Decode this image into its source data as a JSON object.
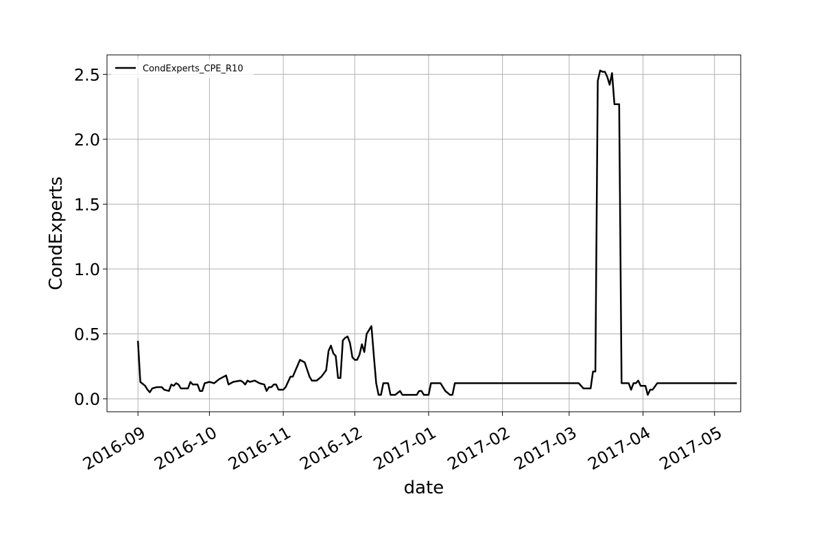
{
  "chart_data": {
    "type": "line",
    "xlabel": "date",
    "ylabel": "CondExperts",
    "x_ticks": [
      "2016-09",
      "2016-10",
      "2016-11",
      "2016-12",
      "2017-01",
      "2017-02",
      "2017-03",
      "2017-04",
      "2017-05"
    ],
    "y_ticks": [
      "0.0",
      "0.5",
      "1.0",
      "1.5",
      "2.0",
      "2.5"
    ],
    "xlim": [
      "2016-08-19",
      "2017-05-12"
    ],
    "ylim": [
      -0.1,
      2.65
    ],
    "grid": true,
    "legend_position": "top-left",
    "series": [
      {
        "name": "CondExperts_CPE_R10",
        "color": "#000000",
        "points": [
          [
            "2016-09-01",
            0.44
          ],
          [
            "2016-09-02",
            0.13
          ],
          [
            "2016-09-04",
            0.1
          ],
          [
            "2016-09-05",
            0.07
          ],
          [
            "2016-09-06",
            0.05
          ],
          [
            "2016-09-07",
            0.08
          ],
          [
            "2016-09-09",
            0.09
          ],
          [
            "2016-09-11",
            0.09
          ],
          [
            "2016-09-12",
            0.07
          ],
          [
            "2016-09-14",
            0.06
          ],
          [
            "2016-09-15",
            0.11
          ],
          [
            "2016-09-16",
            0.1
          ],
          [
            "2016-09-17",
            0.12
          ],
          [
            "2016-09-18",
            0.11
          ],
          [
            "2016-09-19",
            0.08
          ],
          [
            "2016-09-21",
            0.08
          ],
          [
            "2016-09-22",
            0.08
          ],
          [
            "2016-09-23",
            0.13
          ],
          [
            "2016-09-24",
            0.11
          ],
          [
            "2016-09-26",
            0.11
          ],
          [
            "2016-09-27",
            0.06
          ],
          [
            "2016-09-28",
            0.06
          ],
          [
            "2016-09-29",
            0.12
          ],
          [
            "2016-10-01",
            0.13
          ],
          [
            "2016-10-03",
            0.12
          ],
          [
            "2016-10-05",
            0.15
          ],
          [
            "2016-10-08",
            0.18
          ],
          [
            "2016-10-09",
            0.11
          ],
          [
            "2016-10-11",
            0.13
          ],
          [
            "2016-10-14",
            0.14
          ],
          [
            "2016-10-15",
            0.13
          ],
          [
            "2016-10-16",
            0.11
          ],
          [
            "2016-10-17",
            0.14
          ],
          [
            "2016-10-18",
            0.13
          ],
          [
            "2016-10-20",
            0.14
          ],
          [
            "2016-10-22",
            0.12
          ],
          [
            "2016-10-24",
            0.11
          ],
          [
            "2016-10-25",
            0.06
          ],
          [
            "2016-10-26",
            0.09
          ],
          [
            "2016-10-27",
            0.09
          ],
          [
            "2016-10-28",
            0.11
          ],
          [
            "2016-10-29",
            0.11
          ],
          [
            "2016-10-30",
            0.07
          ],
          [
            "2016-11-01",
            0.07
          ],
          [
            "2016-11-02",
            0.09
          ],
          [
            "2016-11-04",
            0.17
          ],
          [
            "2016-11-05",
            0.17
          ],
          [
            "2016-11-08",
            0.3
          ],
          [
            "2016-11-10",
            0.28
          ],
          [
            "2016-11-12",
            0.17
          ],
          [
            "2016-11-13",
            0.14
          ],
          [
            "2016-11-15",
            0.14
          ],
          [
            "2016-11-17",
            0.17
          ],
          [
            "2016-11-19",
            0.22
          ],
          [
            "2016-11-20",
            0.37
          ],
          [
            "2016-11-21",
            0.41
          ],
          [
            "2016-11-22",
            0.35
          ],
          [
            "2016-11-23",
            0.33
          ],
          [
            "2016-11-24",
            0.16
          ],
          [
            "2016-11-25",
            0.16
          ],
          [
            "2016-11-26",
            0.45
          ],
          [
            "2016-11-27",
            0.47
          ],
          [
            "2016-11-28",
            0.48
          ],
          [
            "2016-11-29",
            0.43
          ],
          [
            "2016-11-30",
            0.32
          ],
          [
            "2016-12-01",
            0.3
          ],
          [
            "2016-12-02",
            0.3
          ],
          [
            "2016-12-03",
            0.34
          ],
          [
            "2016-12-04",
            0.42
          ],
          [
            "2016-12-05",
            0.36
          ],
          [
            "2016-12-06",
            0.5
          ],
          [
            "2016-12-07",
            0.53
          ],
          [
            "2016-12-08",
            0.56
          ],
          [
            "2016-12-09",
            0.33
          ],
          [
            "2016-12-10",
            0.12
          ],
          [
            "2016-12-11",
            0.03
          ],
          [
            "2016-12-12",
            0.03
          ],
          [
            "2016-12-13",
            0.12
          ],
          [
            "2016-12-15",
            0.12
          ],
          [
            "2016-12-16",
            0.03
          ],
          [
            "2016-12-18",
            0.03
          ],
          [
            "2016-12-20",
            0.06
          ],
          [
            "2016-12-21",
            0.03
          ],
          [
            "2016-12-25",
            0.03
          ],
          [
            "2016-12-27",
            0.03
          ],
          [
            "2016-12-28",
            0.06
          ],
          [
            "2016-12-29",
            0.06
          ],
          [
            "2016-12-30",
            0.03
          ],
          [
            "2017-01-01",
            0.03
          ],
          [
            "2017-01-02",
            0.12
          ],
          [
            "2017-01-06",
            0.12
          ],
          [
            "2017-01-08",
            0.06
          ],
          [
            "2017-01-10",
            0.03
          ],
          [
            "2017-01-11",
            0.03
          ],
          [
            "2017-01-12",
            0.12
          ],
          [
            "2017-03-05",
            0.12
          ],
          [
            "2017-03-07",
            0.08
          ],
          [
            "2017-03-10",
            0.08
          ],
          [
            "2017-03-11",
            0.21
          ],
          [
            "2017-03-12",
            0.21
          ],
          [
            "2017-03-13",
            2.45
          ],
          [
            "2017-03-14",
            2.53
          ],
          [
            "2017-03-15",
            2.52
          ],
          [
            "2017-03-16",
            2.52
          ],
          [
            "2017-03-17",
            2.48
          ],
          [
            "2017-03-18",
            2.42
          ],
          [
            "2017-03-19",
            2.51
          ],
          [
            "2017-03-20",
            2.27
          ],
          [
            "2017-03-22",
            2.27
          ],
          [
            "2017-03-23",
            0.12
          ],
          [
            "2017-03-26",
            0.12
          ],
          [
            "2017-03-27",
            0.07
          ],
          [
            "2017-03-28",
            0.12
          ],
          [
            "2017-03-29",
            0.12
          ],
          [
            "2017-03-30",
            0.14
          ],
          [
            "2017-03-31",
            0.1
          ],
          [
            "2017-04-02",
            0.1
          ],
          [
            "2017-04-03",
            0.03
          ],
          [
            "2017-04-04",
            0.07
          ],
          [
            "2017-04-05",
            0.07
          ],
          [
            "2017-04-07",
            0.12
          ],
          [
            "2017-05-10",
            0.12
          ]
        ]
      }
    ]
  }
}
